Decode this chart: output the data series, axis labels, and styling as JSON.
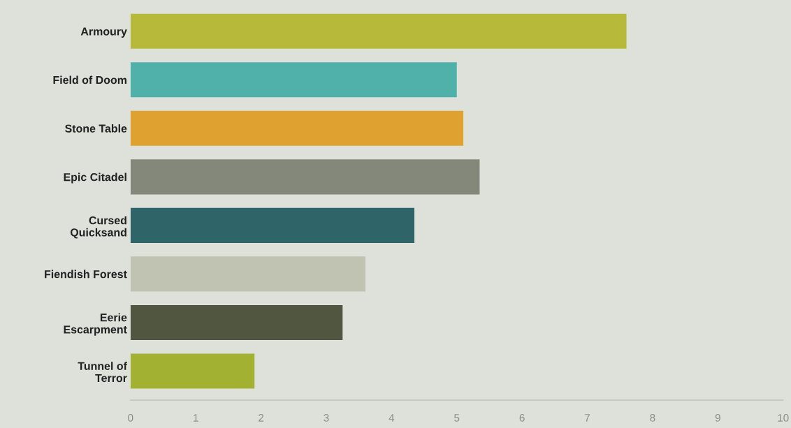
{
  "chart_data": {
    "type": "bar",
    "orientation": "horizontal",
    "categories": [
      "Armoury",
      "Field of Doom",
      "Stone Table",
      "Epic Citadel",
      "Cursed\nQuicksand",
      "Fiendish Forest",
      "Eerie\nEscarpment",
      "Tunnel of\nTerror"
    ],
    "values": [
      7.6,
      5.0,
      5.1,
      5.35,
      4.35,
      3.6,
      3.25,
      1.9
    ],
    "colors": [
      "#b7b93a",
      "#50b0aa",
      "#dfa12f",
      "#84887a",
      "#2f6468",
      "#c0c3b2",
      "#50563f",
      "#a3b133"
    ],
    "xlim": [
      0,
      10
    ],
    "xticks": [
      0,
      1,
      2,
      3,
      4,
      5,
      6,
      7,
      8,
      9,
      10
    ],
    "grid": false
  }
}
